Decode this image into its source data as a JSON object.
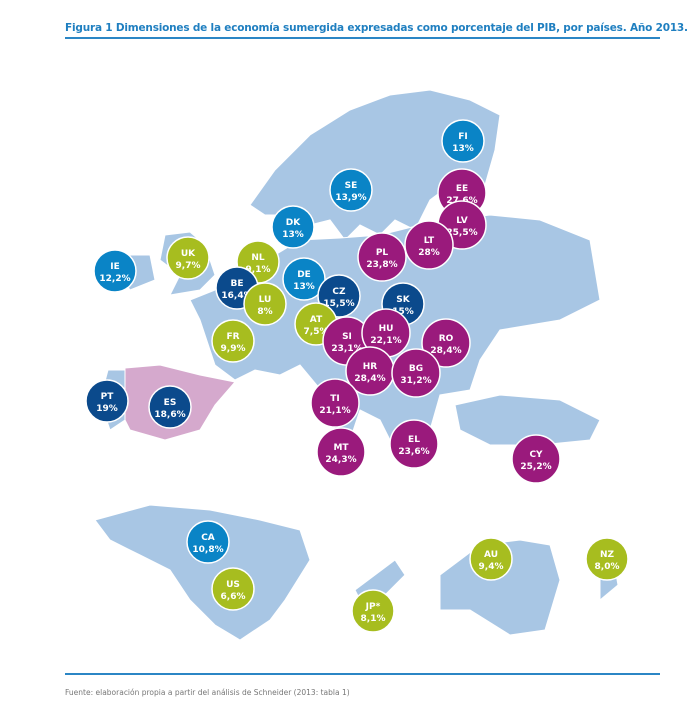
{
  "title": "Figura 1 Dimensiones de la economía sumergida expresadas como porcentaje del PIB, por países. Año 2013.",
  "source": "Fuente: elaboración propia a partir del análisis de Schneider (2013: tabla 1)",
  "colors": {
    "map": "#a8c6e4",
    "highlight": "#d5a9cd",
    "light_blue": "#0a84c6",
    "dark_blue": "#0b4a8c",
    "lime": "#a7bd1f",
    "purple": "#9a1a7c"
  },
  "countries": [
    {
      "code": "FI",
      "value": "13%",
      "color": "light_blue"
    },
    {
      "code": "SE",
      "value": "13,9%",
      "color": "light_blue"
    },
    {
      "code": "EE",
      "value": "27,6%",
      "color": "purple"
    },
    {
      "code": "LV",
      "value": "25,5%",
      "color": "purple"
    },
    {
      "code": "DK",
      "value": "13%",
      "color": "light_blue"
    },
    {
      "code": "LT",
      "value": "28%",
      "color": "purple"
    },
    {
      "code": "PL",
      "value": "23,8%",
      "color": "purple"
    },
    {
      "code": "IE",
      "value": "12,2%",
      "color": "light_blue"
    },
    {
      "code": "UK",
      "value": "9,7%",
      "color": "lime"
    },
    {
      "code": "NL",
      "value": "9,1%",
      "color": "lime"
    },
    {
      "code": "DE",
      "value": "13%",
      "color": "light_blue"
    },
    {
      "code": "BE",
      "value": "16,4%",
      "color": "dark_blue"
    },
    {
      "code": "LU",
      "value": "8%",
      "color": "lime"
    },
    {
      "code": "CZ",
      "value": "15,5%",
      "color": "dark_blue"
    },
    {
      "code": "SK",
      "value": "15%",
      "color": "dark_blue"
    },
    {
      "code": "AT",
      "value": "7,5%",
      "color": "lime"
    },
    {
      "code": "SI",
      "value": "23,1%",
      "color": "purple"
    },
    {
      "code": "HU",
      "value": "22,1%",
      "color": "purple"
    },
    {
      "code": "RO",
      "value": "28,4%",
      "color": "purple"
    },
    {
      "code": "FR",
      "value": "9,9%",
      "color": "lime"
    },
    {
      "code": "HR",
      "value": "28,4%",
      "color": "purple"
    },
    {
      "code": "BG",
      "value": "31,2%",
      "color": "purple"
    },
    {
      "code": "PT",
      "value": "19%",
      "color": "dark_blue"
    },
    {
      "code": "ES",
      "value": "18,6%",
      "color": "dark_blue"
    },
    {
      "code": "TI",
      "value": "21,1%",
      "color": "purple"
    },
    {
      "code": "MT",
      "value": "24,3%",
      "color": "purple"
    },
    {
      "code": "EL",
      "value": "23,6%",
      "color": "purple"
    },
    {
      "code": "CY",
      "value": "25,2%",
      "color": "purple"
    },
    {
      "code": "CA",
      "value": "10,8%",
      "color": "light_blue"
    },
    {
      "code": "US",
      "value": "6,6%",
      "color": "lime"
    },
    {
      "code": "AU",
      "value": "9,4%",
      "color": "lime"
    },
    {
      "code": "NZ",
      "value": "8,0%",
      "color": "lime"
    },
    {
      "code": "JP",
      "value": "JP*",
      "label_value": "8,1%",
      "color": "lime"
    }
  ]
}
